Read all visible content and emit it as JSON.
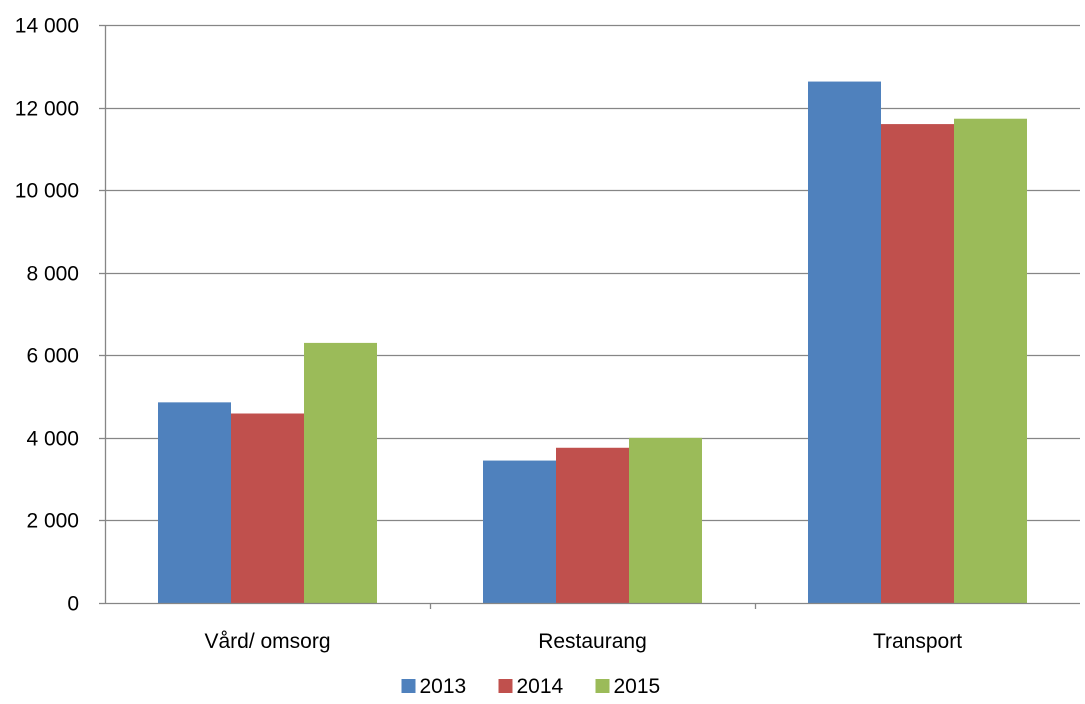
{
  "chart_data": {
    "type": "bar",
    "title": "",
    "xlabel": "",
    "ylabel": "",
    "categories": [
      "Vård/ omsorg",
      "Restaurang",
      "Transport"
    ],
    "series": [
      {
        "name": "2013",
        "color": "#4F81BD",
        "values": [
          4860,
          3450,
          12630
        ]
      },
      {
        "name": "2014",
        "color": "#C0504D",
        "values": [
          4590,
          3760,
          11600
        ]
      },
      {
        "name": "2015",
        "color": "#9BBB59",
        "values": [
          6300,
          4000,
          11730
        ]
      }
    ],
    "ylim": [
      0,
      14000
    ],
    "yticks": [
      0,
      2000,
      4000,
      6000,
      8000,
      10000,
      12000,
      14000
    ],
    "ytick_labels": [
      "0",
      "2 000",
      "4 000",
      "6 000",
      "8 000",
      "10 000",
      "12 000",
      "14 000"
    ],
    "grid": true,
    "legend_position": "bottom"
  }
}
